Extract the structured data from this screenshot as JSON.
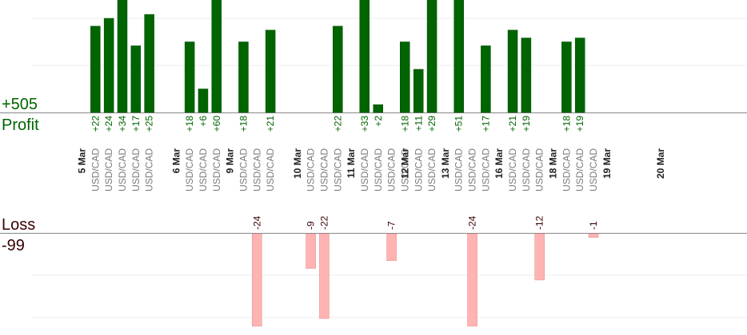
{
  "summary": {
    "profit_total": "+505",
    "profit_label": "Profit",
    "loss_label": "Loss",
    "loss_total": "-99"
  },
  "colors": {
    "profit_bar": "#006400",
    "profit_bar_edge": "#004d00",
    "profit_text": "#006400",
    "loss_bar": "#ffb3b3",
    "loss_bar_edge": "#e08a8a",
    "loss_text": "#3a0000",
    "value_loss_text": "#3a0000",
    "axis": "#888888",
    "grid": "#eeeeee"
  },
  "chart_data": {
    "type": "bar",
    "title": "",
    "pair": "USD/CAD",
    "profit_scale_max": 24,
    "loss_scale_max": 24,
    "dates": [
      {
        "label": "5 Mar",
        "slot": 0
      },
      {
        "label": "6 Mar",
        "slot": 7
      },
      {
        "label": "9 Mar",
        "slot": 11
      },
      {
        "label": "10 Mar",
        "slot": 16
      },
      {
        "label": "11 Mar",
        "slot": 20
      },
      {
        "label": "12 Mar",
        "slot": 24
      },
      {
        "label": "13 Mar",
        "slot": 27
      },
      {
        "label": "16 Mar",
        "slot": 31
      },
      {
        "label": "18 Mar",
        "slot": 35
      },
      {
        "label": "19 Mar",
        "slot": 39
      },
      {
        "label": "20 Mar",
        "slot": 43
      }
    ],
    "trades": [
      {
        "slot": 1,
        "value": 22
      },
      {
        "slot": 2,
        "value": 24
      },
      {
        "slot": 3,
        "value": 34
      },
      {
        "slot": 4,
        "value": 17
      },
      {
        "slot": 5,
        "value": 25
      },
      {
        "slot": 8,
        "value": 18
      },
      {
        "slot": 9,
        "value": 6
      },
      {
        "slot": 10,
        "value": 60
      },
      {
        "slot": 12,
        "value": 18
      },
      {
        "slot": 13,
        "value": -24
      },
      {
        "slot": 14,
        "value": 21
      },
      {
        "slot": 17,
        "value": -9
      },
      {
        "slot": 18,
        "value": -22
      },
      {
        "slot": 19,
        "value": 22
      },
      {
        "slot": 20.99,
        "value": 33
      },
      {
        "slot": 22,
        "value": 2
      },
      {
        "slot": 23,
        "value": -7
      },
      {
        "slot": 23.99,
        "value": 18
      },
      {
        "slot": 25,
        "value": 11
      },
      {
        "slot": 26,
        "value": 29
      },
      {
        "slot": 28,
        "value": 51
      },
      {
        "slot": 29,
        "value": -24
      },
      {
        "slot": 30,
        "value": 17
      },
      {
        "slot": 32,
        "value": 21
      },
      {
        "slot": 33,
        "value": 19
      },
      {
        "slot": 34,
        "value": -12
      },
      {
        "slot": 36,
        "value": 18
      },
      {
        "slot": 37,
        "value": 19
      },
      {
        "slot": 38,
        "value": -1
      }
    ]
  }
}
